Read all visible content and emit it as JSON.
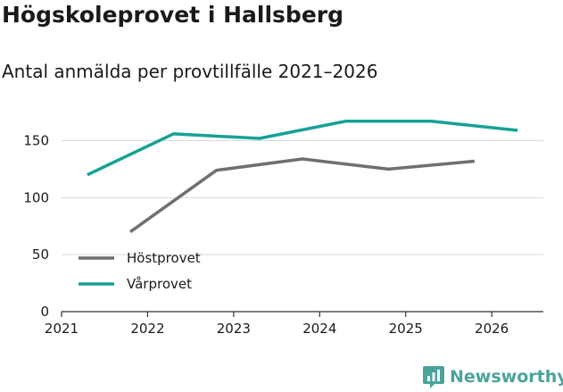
{
  "title": "Högskoleprovet i Hallsberg",
  "subtitle": "Antal anmälda per provtillfälle 2021–2026",
  "brand": {
    "name": "Newsworthy",
    "icon": "bar-chart-logo-icon",
    "color": "#4aa39a"
  },
  "chart_data": {
    "type": "line",
    "title": "Högskoleprovet i Hallsberg",
    "subtitle": "Antal anmälda per provtillfälle 2021–2026",
    "xlabel": "",
    "ylabel": "",
    "xlim": [
      2021,
      2026.6
    ],
    "ylim": [
      0,
      170
    ],
    "x_ticks": [
      2021,
      2022,
      2023,
      2024,
      2025,
      2026
    ],
    "y_ticks": [
      0,
      50,
      100,
      150
    ],
    "grid": "horizontal",
    "legend_position": "bottom-left",
    "series": [
      {
        "name": "Höstprovet",
        "color": "#6e6e73",
        "x": [
          2021.8,
          2022.8,
          2023.8,
          2024.8,
          2025.8
        ],
        "values": [
          70,
          124,
          134,
          125,
          132
        ]
      },
      {
        "name": "Vårprovet",
        "color": "#16a196",
        "x": [
          2021.3,
          2022.3,
          2023.3,
          2024.3,
          2025.3,
          2026.3
        ],
        "values": [
          120,
          156,
          152,
          167,
          167,
          159
        ]
      }
    ]
  }
}
